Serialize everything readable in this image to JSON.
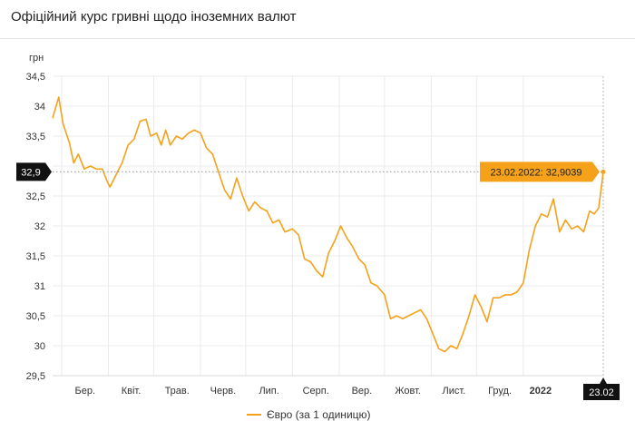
{
  "page": {
    "title": "Офіційний курс гривні щодо іноземних валют"
  },
  "colors": {
    "series": "#f5a11a",
    "grid": "#ebebeb",
    "axis_text": "#333333",
    "marker_bg": "#111111"
  },
  "chart_data": {
    "type": "line",
    "title": "Офіційний курс гривні щодо іноземних валют",
    "ylabel": "грн",
    "ylim": [
      29.5,
      34.5
    ],
    "yticks": [
      29.5,
      30,
      30.5,
      31,
      31.5,
      32,
      32.5,
      33,
      33.5,
      34,
      34.5
    ],
    "ytick_labels": [
      "29,5",
      "30",
      "30,5",
      "31",
      "31,5",
      "32",
      "32,5",
      "33",
      "33,5",
      "34",
      "34,5"
    ],
    "xlim": [
      "2021-02-23",
      "2022-02-23"
    ],
    "x_ticks": [
      {
        "label": "Бер.",
        "date": "2021-03-01",
        "bold": false
      },
      {
        "label": "Квіт.",
        "date": "2021-04-01",
        "bold": false
      },
      {
        "label": "Трав.",
        "date": "2021-05-01",
        "bold": false
      },
      {
        "label": "Черв.",
        "date": "2021-06-01",
        "bold": false
      },
      {
        "label": "Лип.",
        "date": "2021-07-01",
        "bold": false
      },
      {
        "label": "Серп.",
        "date": "2021-08-01",
        "bold": false
      },
      {
        "label": "Вер.",
        "date": "2021-09-01",
        "bold": false
      },
      {
        "label": "Жовт.",
        "date": "2021-10-01",
        "bold": false
      },
      {
        "label": "Лист.",
        "date": "2021-11-01",
        "bold": false
      },
      {
        "label": "Груд.",
        "date": "2021-12-01",
        "bold": false
      },
      {
        "label": "2022",
        "date": "2022-01-01",
        "bold": true
      }
    ],
    "grid": true,
    "legend_position": "bottom-center",
    "series": [
      {
        "name": "Євро (за 1 одиницю)",
        "points": [
          [
            "2021-02-23",
            33.8
          ],
          [
            "2021-02-27",
            34.15
          ],
          [
            "2021-03-02",
            33.7
          ],
          [
            "2021-03-06",
            33.4
          ],
          [
            "2021-03-09",
            33.05
          ],
          [
            "2021-03-12",
            33.2
          ],
          [
            "2021-03-16",
            32.95
          ],
          [
            "2021-03-20",
            33.0
          ],
          [
            "2021-03-24",
            32.95
          ],
          [
            "2021-03-28",
            32.95
          ],
          [
            "2021-03-31",
            32.75
          ],
          [
            "2021-04-02",
            32.65
          ],
          [
            "2021-04-06",
            32.85
          ],
          [
            "2021-04-10",
            33.05
          ],
          [
            "2021-04-14",
            33.35
          ],
          [
            "2021-04-18",
            33.45
          ],
          [
            "2021-04-22",
            33.75
          ],
          [
            "2021-04-26",
            33.78
          ],
          [
            "2021-04-29",
            33.5
          ],
          [
            "2021-05-03",
            33.55
          ],
          [
            "2021-05-06",
            33.35
          ],
          [
            "2021-05-09",
            33.6
          ],
          [
            "2021-05-12",
            33.35
          ],
          [
            "2021-05-16",
            33.5
          ],
          [
            "2021-05-20",
            33.45
          ],
          [
            "2021-05-24",
            33.55
          ],
          [
            "2021-05-28",
            33.6
          ],
          [
            "2021-06-01",
            33.55
          ],
          [
            "2021-06-05",
            33.3
          ],
          [
            "2021-06-09",
            33.2
          ],
          [
            "2021-06-13",
            32.9
          ],
          [
            "2021-06-17",
            32.6
          ],
          [
            "2021-06-21",
            32.45
          ],
          [
            "2021-06-25",
            32.8
          ],
          [
            "2021-06-29",
            32.5
          ],
          [
            "2021-07-03",
            32.25
          ],
          [
            "2021-07-07",
            32.4
          ],
          [
            "2021-07-11",
            32.3
          ],
          [
            "2021-07-15",
            32.25
          ],
          [
            "2021-07-19",
            32.05
          ],
          [
            "2021-07-23",
            32.1
          ],
          [
            "2021-07-27",
            31.9
          ],
          [
            "2021-08-01",
            31.95
          ],
          [
            "2021-08-05",
            31.85
          ],
          [
            "2021-08-09",
            31.45
          ],
          [
            "2021-08-13",
            31.4
          ],
          [
            "2021-08-17",
            31.25
          ],
          [
            "2021-08-21",
            31.15
          ],
          [
            "2021-08-25",
            31.55
          ],
          [
            "2021-08-29",
            31.75
          ],
          [
            "2021-09-02",
            32.0
          ],
          [
            "2021-09-06",
            31.8
          ],
          [
            "2021-09-10",
            31.65
          ],
          [
            "2021-09-14",
            31.45
          ],
          [
            "2021-09-18",
            31.35
          ],
          [
            "2021-09-22",
            31.05
          ],
          [
            "2021-09-26",
            31.0
          ],
          [
            "2021-10-01",
            30.85
          ],
          [
            "2021-10-05",
            30.45
          ],
          [
            "2021-10-09",
            30.5
          ],
          [
            "2021-10-13",
            30.45
          ],
          [
            "2021-10-17",
            30.5
          ],
          [
            "2021-10-21",
            30.55
          ],
          [
            "2021-10-25",
            30.6
          ],
          [
            "2021-10-29",
            30.45
          ],
          [
            "2021-11-02",
            30.2
          ],
          [
            "2021-11-06",
            29.95
          ],
          [
            "2021-11-10",
            29.9
          ],
          [
            "2021-11-14",
            30.0
          ],
          [
            "2021-11-18",
            29.95
          ],
          [
            "2021-11-22",
            30.2
          ],
          [
            "2021-11-26",
            30.5
          ],
          [
            "2021-11-30",
            30.85
          ],
          [
            "2021-12-04",
            30.65
          ],
          [
            "2021-12-08",
            30.4
          ],
          [
            "2021-12-12",
            30.8
          ],
          [
            "2021-12-16",
            30.8
          ],
          [
            "2021-12-20",
            30.85
          ],
          [
            "2021-12-24",
            30.85
          ],
          [
            "2021-12-28",
            30.9
          ],
          [
            "2022-01-01",
            31.05
          ],
          [
            "2022-01-05",
            31.6
          ],
          [
            "2022-01-09",
            32.0
          ],
          [
            "2022-01-13",
            32.2
          ],
          [
            "2022-01-17",
            32.15
          ],
          [
            "2022-01-21",
            32.45
          ],
          [
            "2022-01-25",
            31.9
          ],
          [
            "2022-01-29",
            32.1
          ],
          [
            "2022-02-02",
            31.95
          ],
          [
            "2022-02-06",
            32.0
          ],
          [
            "2022-02-10",
            31.9
          ],
          [
            "2022-02-14",
            32.25
          ],
          [
            "2022-02-17",
            32.2
          ],
          [
            "2022-02-20",
            32.3
          ],
          [
            "2022-02-23",
            32.9039
          ]
        ]
      }
    ],
    "annotations": {
      "y_marker_label": "32,9",
      "y_marker_value": 32.9039,
      "tooltip_text": "23.02.2022: 32,9039",
      "x_marker_label": "23.02",
      "x_marker_date": "2022-02-23"
    }
  }
}
